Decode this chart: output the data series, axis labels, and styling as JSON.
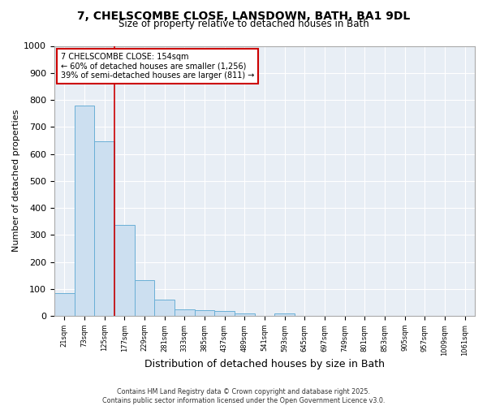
{
  "title_line1": "7, CHELSCOMBE CLOSE, LANSDOWN, BATH, BA1 9DL",
  "title_line2": "Size of property relative to detached houses in Bath",
  "xlabel": "Distribution of detached houses by size in Bath",
  "ylabel": "Number of detached properties",
  "bin_labels": [
    "21sqm",
    "73sqm",
    "125sqm",
    "177sqm",
    "229sqm",
    "281sqm",
    "333sqm",
    "385sqm",
    "437sqm",
    "489sqm",
    "541sqm",
    "593sqm",
    "645sqm",
    "697sqm",
    "749sqm",
    "801sqm",
    "853sqm",
    "905sqm",
    "957sqm",
    "1009sqm",
    "1061sqm"
  ],
  "bar_values": [
    85,
    780,
    648,
    336,
    132,
    60,
    25,
    22,
    18,
    8,
    0,
    8,
    0,
    0,
    0,
    0,
    0,
    0,
    0,
    0,
    0
  ],
  "bar_color": "#ccdff0",
  "bar_edgecolor": "#6aafd6",
  "vline_x": 2.5,
  "vline_color": "#cc0000",
  "annotation_text": "7 CHELSCOMBE CLOSE: 154sqm\n← 60% of detached houses are smaller (1,256)\n39% of semi-detached houses are larger (811) →",
  "annotation_box_color": "#ffffff",
  "annotation_box_edgecolor": "#cc0000",
  "ylim": [
    0,
    1000
  ],
  "yticks": [
    0,
    100,
    200,
    300,
    400,
    500,
    600,
    700,
    800,
    900,
    1000
  ],
  "background_color": "#ffffff",
  "plot_background": "#e8eef5",
  "grid_color": "#ffffff",
  "footer_text": "Contains HM Land Registry data © Crown copyright and database right 2025.\nContains public sector information licensed under the Open Government Licence v3.0.",
  "figsize": [
    6.0,
    5.0
  ],
  "dpi": 100
}
